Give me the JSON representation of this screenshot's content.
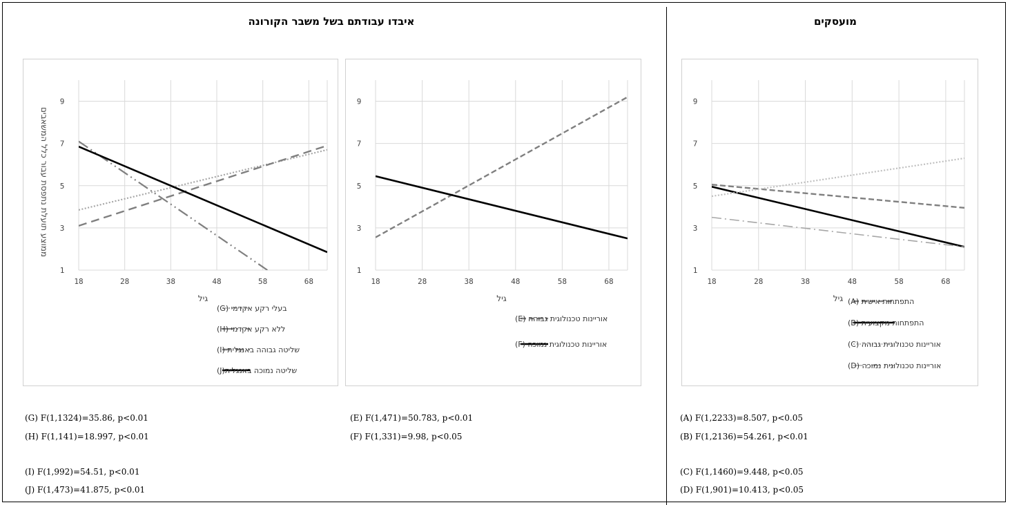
{
  "titles": {
    "employed": "מועסקים",
    "lost_jobs": "איבדו עבודתם בשל משבר הקורונה"
  },
  "colors": {
    "black": "#000000",
    "darkgray": "#7f7f7f",
    "lightgray": "#bfbfbf",
    "midgray": "#a6a6a6"
  },
  "chart_data": [
    {
      "id": "chart-left",
      "type": "line",
      "xlabel": "גיל",
      "ylabel": "ממוצע תועלת נתפסת עבור כלל המשאבים",
      "xticks": [
        18,
        28,
        38,
        48,
        58,
        68
      ],
      "yticks": [
        1,
        3,
        5,
        7,
        9
      ],
      "xlim": [
        18,
        72
      ],
      "ylim": [
        1,
        10
      ],
      "grid": true,
      "legend_position": "bottom",
      "series": [
        {
          "name": "בעלי רקע אקדמי (G)",
          "x": [
            18,
            72
          ],
          "y": [
            3.85,
            6.7
          ],
          "style": "dotted",
          "color": "#a6a6a6"
        },
        {
          "name": "ללא רקע אקדמי (H)",
          "x": [
            18,
            59
          ],
          "y": [
            7.1,
            1.0
          ],
          "style": "dashdotdot",
          "color": "#7f7f7f"
        },
        {
          "name": "שליטה גבוהה באנגלית (I)",
          "x": [
            18,
            72
          ],
          "y": [
            3.1,
            6.9
          ],
          "style": "longdash",
          "color": "#7f7f7f"
        },
        {
          "name": "שליטה נמוכה באנגלית(J)",
          "x": [
            18,
            72
          ],
          "y": [
            6.85,
            1.85
          ],
          "style": "solid",
          "color": "#000000"
        }
      ]
    },
    {
      "id": "chart-middle",
      "type": "line",
      "xlabel": "גיל",
      "ylabel": "",
      "xticks": [
        18,
        28,
        38,
        48,
        58,
        68
      ],
      "yticks": [
        1,
        3,
        5,
        7,
        9
      ],
      "xlim": [
        18,
        72
      ],
      "ylim": [
        1,
        10
      ],
      "grid": true,
      "legend_position": "bottom",
      "series": [
        {
          "name": "אוריינות טכנולוגית גבוהה (E)",
          "x": [
            18,
            72
          ],
          "y": [
            2.55,
            9.2
          ],
          "style": "dashed",
          "color": "#7f7f7f"
        },
        {
          "name": "אוריינות טכנולוגית נמוכה (F)",
          "x": [
            18,
            72
          ],
          "y": [
            5.45,
            2.5
          ],
          "style": "solid",
          "color": "#000000"
        }
      ]
    },
    {
      "id": "chart-right",
      "type": "line",
      "xlabel": "גיל",
      "ylabel": "",
      "xticks": [
        18,
        28,
        38,
        48,
        58,
        68
      ],
      "yticks": [
        1,
        3,
        5,
        7,
        9
      ],
      "xlim": [
        18,
        72
      ],
      "ylim": [
        1,
        10
      ],
      "grid": true,
      "legend_position": "bottom",
      "series": [
        {
          "name": "התפתחות אישית (A)",
          "x": [
            18,
            72
          ],
          "y": [
            5.05,
            3.95
          ],
          "style": "dashed",
          "color": "#7f7f7f"
        },
        {
          "name": "התפתחות מקצועית (B)",
          "x": [
            18,
            72
          ],
          "y": [
            4.95,
            2.1
          ],
          "style": "solid",
          "color": "#000000"
        },
        {
          "name": "אוריינות טכנולוגית גבוהה (C)",
          "x": [
            18,
            72
          ],
          "y": [
            4.5,
            6.3
          ],
          "style": "dotted",
          "color": "#bfbfbf"
        },
        {
          "name": "אוריינות טכנולוגית נמוכה (D)",
          "x": [
            18,
            72
          ],
          "y": [
            3.5,
            2.1
          ],
          "style": "dashdot",
          "color": "#a6a6a6"
        }
      ]
    }
  ],
  "stats": {
    "left": [
      "(G) F(1,1324)=35.86, p<0.01",
      "(H) F(1,141)=18.997, p<0.01",
      "(I) F(1,992)=54.51, p<0.01",
      "(J) F(1,473)=41.875, p<0.01"
    ],
    "middle": [
      "(E) F(1,471)=50.783, p<0.01",
      "(F) F(1,331)=9.98, p<0.05"
    ],
    "right": [
      "(A) F(1,2233)=8.507, p<0.05",
      "(B) F(1,2136)=54.261, p<0.01",
      "(C) F(1,1460)=9.448, p<0.05",
      "(D) F(1,901)=10.413, p<0.05"
    ]
  }
}
